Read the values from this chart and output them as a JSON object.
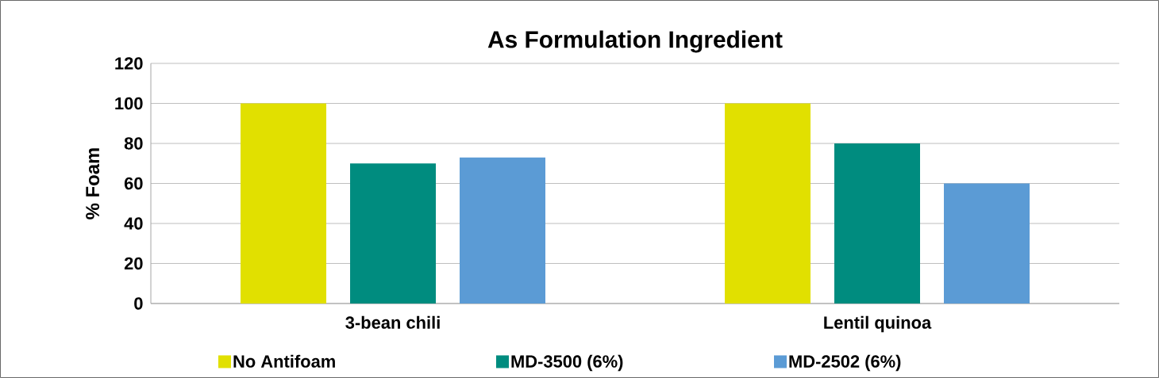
{
  "chart_data": {
    "type": "bar",
    "title": "As Formulation Ingredient",
    "ylabel": "% Foam",
    "categories": [
      "3-bean chili",
      "Lentil quinoa"
    ],
    "series": [
      {
        "name": "No Antifoam",
        "color": "#e1e000",
        "values": [
          100,
          100
        ]
      },
      {
        "name": "MD-3500 (6%)",
        "color": "#008c7f",
        "values": [
          70,
          80
        ]
      },
      {
        "name": "MD-2502 (6%)",
        "color": "#5b9bd5",
        "values": [
          73,
          60
        ]
      }
    ],
    "ylim": [
      0,
      120
    ],
    "yticks": [
      0,
      20,
      40,
      60,
      80,
      100,
      120
    ],
    "grid": "y",
    "legend": "bottom"
  }
}
